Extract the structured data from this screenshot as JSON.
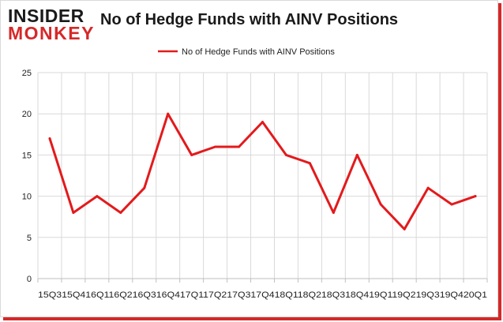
{
  "brand": {
    "logo_top": "INSIDER",
    "logo_bottom": "MONKEY",
    "accent_color": "#d62828"
  },
  "chart_data": {
    "type": "line",
    "title": "No of Hedge Funds with AINV Positions",
    "xlabel": "",
    "ylabel": "",
    "categories": [
      "15Q3",
      "15Q4",
      "16Q1",
      "16Q2",
      "16Q3",
      "16Q4",
      "17Q1",
      "17Q2",
      "17Q3",
      "17Q4",
      "18Q1",
      "18Q2",
      "18Q3",
      "18Q4",
      "19Q1",
      "19Q2",
      "19Q3",
      "19Q4",
      "20Q1"
    ],
    "x_tick_text": "15Q315Q416Q116Q216Q316Q417Q117Q217Q317Q418Q118Q218Q318Q419Q119Q219Q319Q420Q1",
    "series": [
      {
        "name": "No of Hedge Funds with AINV Positions",
        "color": "#e31a1c",
        "values": [
          17,
          8,
          10,
          8,
          11,
          20,
          15,
          16,
          16,
          19,
          15,
          14,
          8,
          15,
          9,
          6,
          11,
          9,
          10
        ]
      }
    ],
    "ylim": [
      0,
      25
    ],
    "yticks": [
      0,
      5,
      10,
      15,
      20,
      25
    ],
    "grid": true,
    "legend_position": "top-center"
  }
}
